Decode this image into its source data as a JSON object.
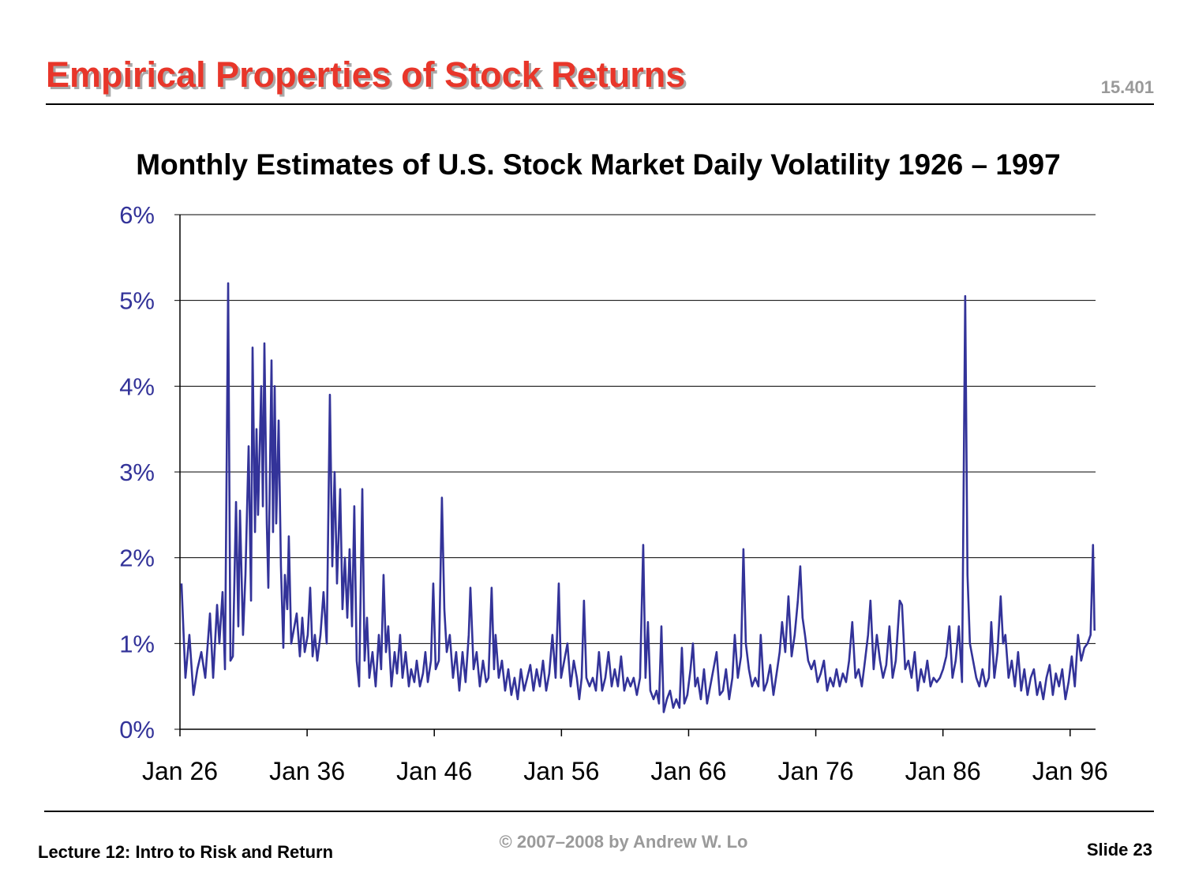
{
  "slide": {
    "title": "Empirical Properties of Stock Returns",
    "course": "15.401",
    "footer_left": "Lecture 12: Intro to Risk and Return",
    "copyright": "© 2007–2008 by Andrew W. Lo",
    "slide_number": "Slide 23"
  },
  "chart_data": {
    "type": "line",
    "title": "Monthly Estimates of U.S. Stock Market Daily Volatility 1926 – 1997",
    "color": "#333399",
    "grid": true,
    "xlim": [
      1926,
      1998
    ],
    "xticks": [
      {
        "value": 1926,
        "label": "Jan 26"
      },
      {
        "value": 1936,
        "label": "Jan 36"
      },
      {
        "value": 1946,
        "label": "Jan 46"
      },
      {
        "value": 1956,
        "label": "Jan 56"
      },
      {
        "value": 1966,
        "label": "Jan 66"
      },
      {
        "value": 1976,
        "label": "Jan 76"
      },
      {
        "value": 1986,
        "label": "Jan 86"
      },
      {
        "value": 1996,
        "label": "Jan 96"
      }
    ],
    "ylim": [
      0,
      6
    ],
    "yticks": [
      {
        "value": 0,
        "label": "0%"
      },
      {
        "value": 1,
        "label": "1%"
      },
      {
        "value": 2,
        "label": "2%"
      },
      {
        "value": 3,
        "label": "3%"
      },
      {
        "value": 4,
        "label": "4%"
      },
      {
        "value": 5,
        "label": "5%"
      },
      {
        "value": 6,
        "label": "6%"
      }
    ],
    "x": [
      1926.12,
      1926.43,
      1926.74,
      1927.06,
      1927.37,
      1927.68,
      1927.99,
      1928.36,
      1928.61,
      1928.92,
      1929.1,
      1929.35,
      1929.54,
      1929.79,
      1929.97,
      1930.16,
      1930.41,
      1930.59,
      1930.72,
      1930.96,
      1931.15,
      1931.4,
      1931.59,
      1931.71,
      1931.9,
      1932.02,
      1932.14,
      1932.39,
      1932.52,
      1932.64,
      1932.83,
      1932.95,
      1933.2,
      1933.32,
      1933.45,
      1933.57,
      1933.76,
      1933.94,
      1934.13,
      1934.25,
      1934.44,
      1934.56,
      1934.75,
      1935.0,
      1935.18,
      1935.43,
      1935.62,
      1935.81,
      1936.05,
      1936.24,
      1936.43,
      1936.61,
      1936.8,
      1937.05,
      1937.29,
      1937.54,
      1937.79,
      1937.98,
      1938.16,
      1938.35,
      1938.6,
      1938.78,
      1938.97,
      1939.16,
      1939.34,
      1939.53,
      1939.71,
      1939.9,
      1940.09,
      1940.34,
      1940.52,
      1940.71,
      1940.89,
      1941.14,
      1941.39,
      1941.64,
      1941.82,
      1942.01,
      1942.2,
      1942.38,
      1942.63,
      1942.88,
      1943.07,
      1943.31,
      1943.5,
      1943.75,
      1944.0,
      1944.18,
      1944.43,
      1944.62,
      1944.87,
      1945.11,
      1945.3,
      1945.49,
      1945.74,
      1945.92,
      1946.11,
      1946.36,
      1946.6,
      1946.79,
      1946.98,
      1947.22,
      1947.47,
      1947.72,
      1947.97,
      1948.22,
      1948.46,
      1948.71,
      1948.84,
      1949.09,
      1949.33,
      1949.58,
      1949.83,
      1950.08,
      1950.26,
      1950.51,
      1950.7,
      1950.82,
      1951.07,
      1951.32,
      1951.57,
      1951.82,
      1952.06,
      1952.31,
      1952.56,
      1952.81,
      1953.06,
      1953.31,
      1953.55,
      1953.8,
      1954.05,
      1954.3,
      1954.55,
      1954.8,
      1955.04,
      1955.29,
      1955.54,
      1955.79,
      1955.97,
      1956.22,
      1956.47,
      1956.72,
      1956.97,
      1957.21,
      1957.4,
      1957.59,
      1957.77,
      1957.96,
      1958.21,
      1958.46,
      1958.71,
      1958.95,
      1959.2,
      1959.45,
      1959.7,
      1959.95,
      1960.19,
      1960.44,
      1960.69,
      1960.94,
      1961.19,
      1961.43,
      1961.68,
      1961.93,
      1962.18,
      1962.43,
      1962.61,
      1962.8,
      1962.99,
      1963.24,
      1963.48,
      1963.67,
      1963.86,
      1964.04,
      1964.29,
      1964.54,
      1964.79,
      1965.03,
      1965.28,
      1965.47,
      1965.66,
      1965.9,
      1966.15,
      1966.34,
      1966.52,
      1966.71,
      1966.96,
      1967.21,
      1967.45,
      1967.7,
      1967.95,
      1968.2,
      1968.45,
      1968.7,
      1968.94,
      1969.19,
      1969.44,
      1969.63,
      1969.87,
      1970.12,
      1970.31,
      1970.5,
      1970.74,
      1970.99,
      1971.24,
      1971.49,
      1971.67,
      1971.92,
      1972.17,
      1972.42,
      1972.67,
      1972.92,
      1973.16,
      1973.35,
      1973.6,
      1973.85,
      1974.1,
      1974.34,
      1974.59,
      1974.78,
      1974.96,
      1975.15,
      1975.4,
      1975.65,
      1975.89,
      1976.14,
      1976.39,
      1976.64,
      1976.89,
      1977.13,
      1977.38,
      1977.63,
      1977.88,
      1978.13,
      1978.38,
      1978.62,
      1978.87,
      1979.12,
      1979.37,
      1979.62,
      1979.87,
      1980.11,
      1980.3,
      1980.55,
      1980.8,
      1981.05,
      1981.29,
      1981.54,
      1981.79,
      1982.04,
      1982.29,
      1982.6,
      1982.78,
      1983.03,
      1983.28,
      1983.53,
      1983.78,
      1984.02,
      1984.27,
      1984.52,
      1984.77,
      1985.02,
      1985.26,
      1985.51,
      1985.76,
      1986.01,
      1986.26,
      1986.51,
      1986.75,
      1987.0,
      1987.25,
      1987.5,
      1987.75,
      1987.93,
      1988.12,
      1988.37,
      1988.62,
      1988.86,
      1989.11,
      1989.36,
      1989.61,
      1989.8,
      1990.04,
      1990.29,
      1990.54,
      1990.73,
      1990.91,
      1991.16,
      1991.41,
      1991.66,
      1991.91,
      1992.15,
      1992.4,
      1992.65,
      1992.9,
      1993.15,
      1993.4,
      1993.64,
      1993.89,
      1994.14,
      1994.39,
      1994.64,
      1994.88,
      1995.13,
      1995.38,
      1995.63,
      1995.88,
      1996.13,
      1996.37,
      1996.62,
      1996.87,
      1997.12,
      1997.37,
      1997.61,
      1997.8,
      1997.92
    ],
    "values": [
      1.7,
      0.6,
      1.1,
      0.4,
      0.7,
      0.9,
      0.6,
      1.35,
      0.6,
      1.45,
      1.0,
      1.6,
      0.7,
      5.2,
      0.8,
      0.85,
      2.65,
      1.2,
      2.55,
      1.1,
      1.8,
      3.3,
      1.5,
      4.45,
      2.3,
      3.5,
      2.5,
      4.0,
      2.6,
      4.5,
      2.4,
      1.65,
      4.3,
      2.3,
      4.0,
      2.4,
      3.6,
      1.9,
      0.95,
      1.8,
      1.4,
      2.25,
      1.0,
      1.2,
      1.35,
      0.85,
      1.3,
      0.9,
      1.1,
      1.65,
      0.85,
      1.1,
      0.8,
      1.1,
      1.6,
      1.0,
      3.9,
      1.9,
      3.0,
      1.7,
      2.8,
      1.4,
      2.0,
      1.3,
      2.1,
      1.2,
      2.6,
      0.8,
      0.5,
      2.8,
      0.8,
      1.3,
      0.6,
      0.9,
      0.5,
      1.1,
      0.7,
      1.8,
      0.9,
      1.2,
      0.5,
      0.9,
      0.65,
      1.1,
      0.6,
      0.9,
      0.5,
      0.7,
      0.55,
      0.8,
      0.5,
      0.65,
      0.9,
      0.55,
      0.8,
      1.7,
      0.7,
      0.8,
      2.7,
      1.4,
      0.9,
      1.1,
      0.6,
      0.9,
      0.45,
      0.9,
      0.55,
      1.1,
      1.65,
      0.7,
      0.9,
      0.5,
      0.8,
      0.55,
      0.6,
      1.65,
      0.7,
      1.1,
      0.6,
      0.8,
      0.45,
      0.7,
      0.4,
      0.6,
      0.35,
      0.7,
      0.45,
      0.6,
      0.75,
      0.45,
      0.7,
      0.5,
      0.8,
      0.45,
      0.65,
      1.1,
      0.6,
      1.7,
      0.6,
      0.8,
      1.0,
      0.5,
      0.8,
      0.6,
      0.35,
      0.6,
      1.5,
      0.6,
      0.5,
      0.6,
      0.45,
      0.9,
      0.45,
      0.6,
      0.9,
      0.5,
      0.7,
      0.5,
      0.85,
      0.45,
      0.6,
      0.5,
      0.6,
      0.4,
      0.6,
      2.15,
      0.6,
      1.25,
      0.45,
      0.35,
      0.45,
      0.3,
      1.2,
      0.2,
      0.35,
      0.45,
      0.25,
      0.35,
      0.25,
      0.95,
      0.3,
      0.4,
      0.7,
      1.0,
      0.5,
      0.6,
      0.35,
      0.7,
      0.3,
      0.5,
      0.7,
      0.9,
      0.4,
      0.45,
      0.7,
      0.35,
      0.6,
      1.1,
      0.6,
      0.85,
      2.1,
      1.0,
      0.7,
      0.5,
      0.6,
      0.5,
      1.1,
      0.45,
      0.55,
      0.75,
      0.4,
      0.65,
      0.9,
      1.25,
      0.9,
      1.55,
      0.85,
      1.1,
      1.5,
      1.9,
      1.3,
      1.1,
      0.8,
      0.7,
      0.8,
      0.55,
      0.65,
      0.8,
      0.45,
      0.6,
      0.5,
      0.7,
      0.5,
      0.65,
      0.55,
      0.8,
      1.25,
      0.6,
      0.7,
      0.5,
      0.8,
      1.1,
      1.5,
      0.7,
      1.1,
      0.8,
      0.6,
      0.75,
      1.2,
      0.6,
      0.8,
      1.5,
      1.45,
      0.7,
      0.8,
      0.6,
      0.9,
      0.45,
      0.7,
      0.55,
      0.8,
      0.5,
      0.6,
      0.55,
      0.6,
      0.7,
      0.85,
      1.2,
      0.6,
      0.8,
      1.2,
      0.55,
      5.05,
      1.8,
      1.0,
      0.8,
      0.6,
      0.5,
      0.7,
      0.5,
      0.6,
      1.25,
      0.6,
      0.9,
      1.55,
      1.0,
      1.1,
      0.6,
      0.8,
      0.5,
      0.9,
      0.45,
      0.7,
      0.4,
      0.6,
      0.7,
      0.4,
      0.55,
      0.35,
      0.6,
      0.75,
      0.4,
      0.65,
      0.5,
      0.7,
      0.35,
      0.55,
      0.85,
      0.5,
      1.1,
      0.8,
      0.95,
      1.0,
      1.1,
      2.15,
      1.15
    ]
  }
}
